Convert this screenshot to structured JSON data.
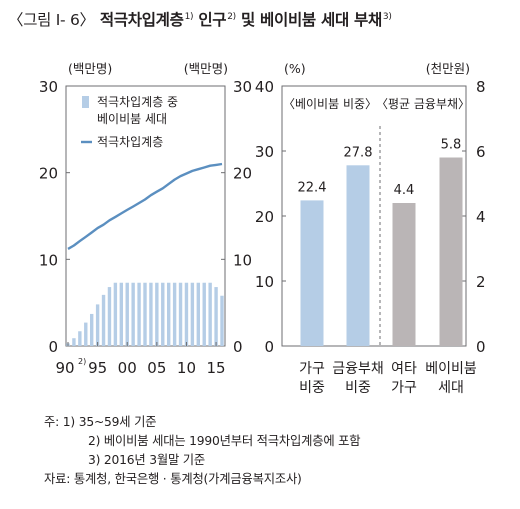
{
  "title": {
    "prefix": "〈그림 Ⅰ- 6〉",
    "main1": "적극차입계층",
    "sup1": "1)",
    "main2": " 인구",
    "sup2": "2)",
    "main3": " 및 베이비붐 세대 부채",
    "sup3": "3)"
  },
  "colors": {
    "bar_blue": "#b5cde6",
    "line_blue": "#5b8fc0",
    "bar_gray": "#bab5b6"
  },
  "chart_data": [
    {
      "type": "bar+line",
      "left_unit": "(백만명)",
      "right_unit": "(백만명)",
      "ylim": [
        0,
        30
      ],
      "yticks": [
        0,
        10,
        20,
        30
      ],
      "xticks": [
        "90",
        "95",
        "00",
        "05",
        "10",
        "15"
      ],
      "xtick_first_sup": "2)",
      "years": [
        1990,
        1991,
        1992,
        1993,
        1994,
        1995,
        1996,
        1997,
        1998,
        1999,
        2000,
        2001,
        2002,
        2003,
        2004,
        2005,
        2006,
        2007,
        2008,
        2009,
        2010,
        2011,
        2012,
        2013,
        2014,
        2015,
        2016
      ],
      "series": [
        {
          "name": "적극차입계층 중 베이비붐 세대",
          "type": "bar",
          "values": [
            0.3,
            0.9,
            1.7,
            2.7,
            3.7,
            4.8,
            5.9,
            6.8,
            7.3,
            7.3,
            7.3,
            7.3,
            7.3,
            7.3,
            7.3,
            7.3,
            7.3,
            7.3,
            7.3,
            7.3,
            7.3,
            7.3,
            7.3,
            7.3,
            7.3,
            6.8,
            5.8
          ]
        },
        {
          "name": "적극차입계층",
          "type": "line",
          "values": [
            11.2,
            11.6,
            12.1,
            12.6,
            13.1,
            13.6,
            14.0,
            14.5,
            14.9,
            15.3,
            15.7,
            16.1,
            16.5,
            16.9,
            17.4,
            17.8,
            18.2,
            18.7,
            19.2,
            19.6,
            19.9,
            20.2,
            20.4,
            20.6,
            20.8,
            20.9,
            21.0
          ]
        }
      ],
      "legend": [
        "적극차입계층 중",
        "베이비붐 세대",
        "적극차입계층"
      ]
    },
    {
      "type": "bar",
      "left_unit": "(%)",
      "right_unit": "(천만원)",
      "left_ylim": [
        0,
        40
      ],
      "left_yticks": [
        0,
        10,
        20,
        30,
        40
      ],
      "right_ylim": [
        0,
        8
      ],
      "right_yticks": [
        0,
        2,
        4,
        6,
        8
      ],
      "group_labels": [
        "〈베이비붐 비중〉",
        "〈평균 금융부채〉"
      ],
      "categories": [
        [
          "가구",
          "비중"
        ],
        [
          "금융부채",
          "비중"
        ],
        [
          "여타",
          "가구"
        ],
        [
          "베이비붐",
          "세대"
        ]
      ],
      "values": [
        22.4,
        27.8,
        4.4,
        5.8
      ],
      "value_labels": [
        "22.4",
        "27.8",
        "4.4",
        "5.8"
      ],
      "axis": [
        "left",
        "left",
        "right",
        "right"
      ]
    }
  ],
  "notes": {
    "note_head": "주:",
    "note1": "1) 35~59세 기준",
    "note2": "2) 베이비붐 세대는 1990년부터 적극차입계층에 포함",
    "note3": "3) 2016년 3월말 기준",
    "source": "자료: 통계청, 한국은행 · 통계청(가계금융복지조사)"
  }
}
